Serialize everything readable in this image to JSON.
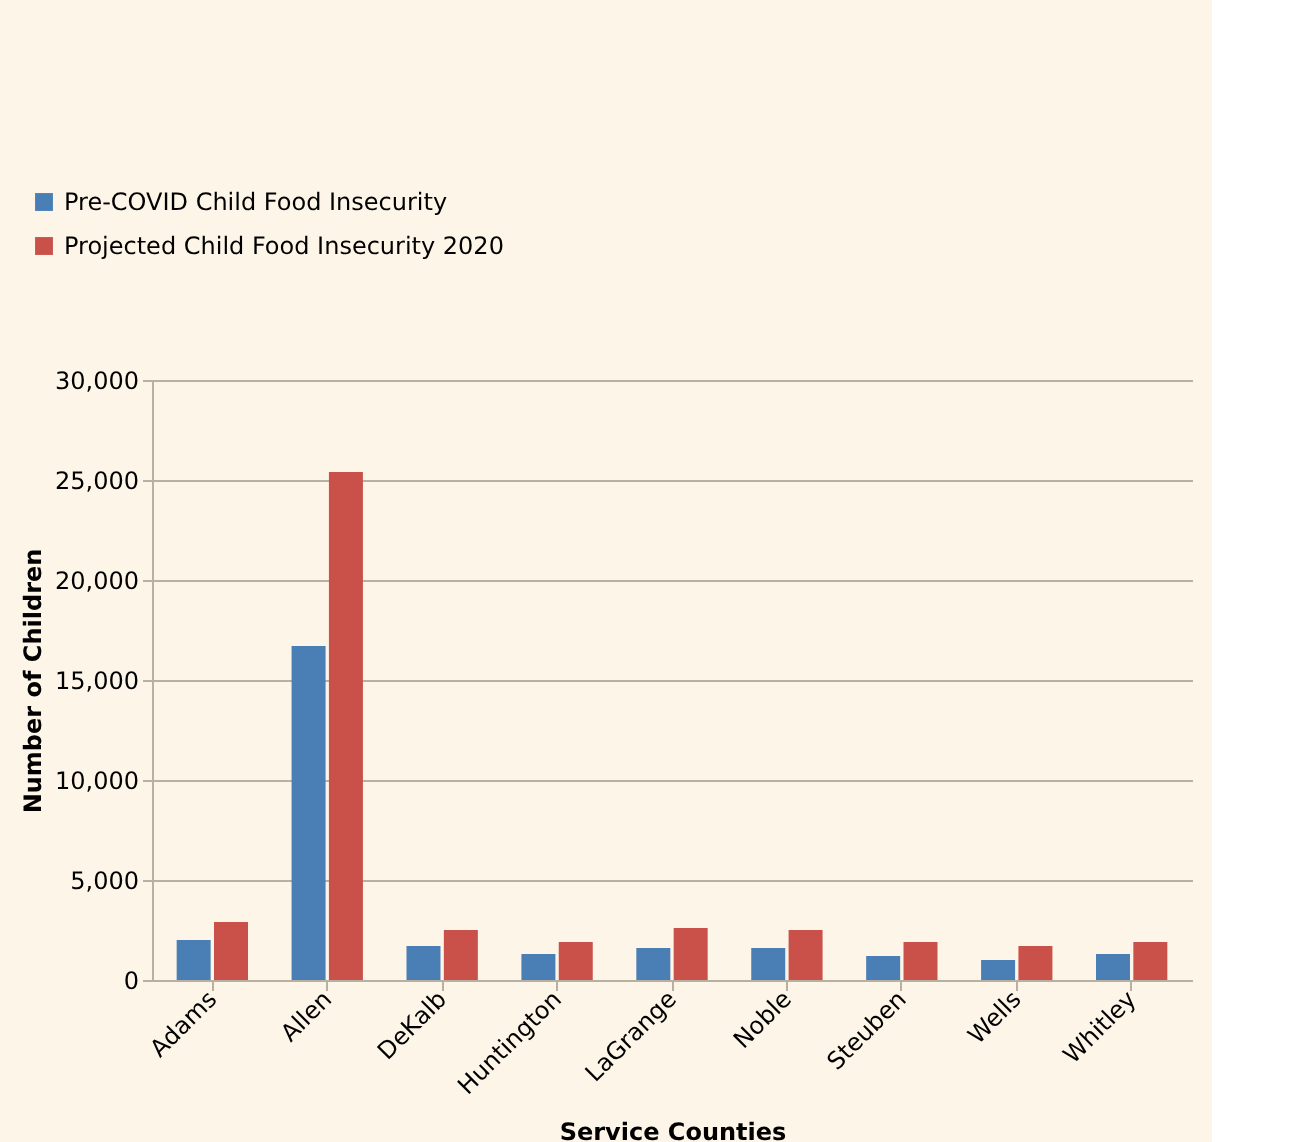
{
  "chart_data": {
    "type": "bar",
    "xlabel": "Service Counties",
    "ylabel": "Number of Children",
    "categories": [
      "Adams",
      "Allen",
      "DeKalb",
      "Huntington",
      "LaGrange",
      "Noble",
      "Steuben",
      "Wells",
      "Whitley"
    ],
    "series": [
      {
        "name": "Pre-COVID Child Food Insecurity",
        "color": "#4a7fb5",
        "values": [
          2000,
          16700,
          1700,
          1300,
          1600,
          1600,
          1200,
          1000,
          1300
        ]
      },
      {
        "name": "Projected Child Food Insecurity 2020",
        "color": "#c9514a",
        "values": [
          2900,
          25400,
          2500,
          1900,
          2600,
          2500,
          1900,
          1700,
          1900
        ]
      }
    ],
    "ylim": [
      0,
      30000
    ],
    "yticks": [
      {
        "value": 0,
        "label": "0"
      },
      {
        "value": 5000,
        "label": "5,000"
      },
      {
        "value": 10000,
        "label": "10,000"
      },
      {
        "value": 15000,
        "label": "15,000"
      },
      {
        "value": 20000,
        "label": "20,000"
      },
      {
        "value": 25000,
        "label": "25,000"
      },
      {
        "value": 30000,
        "label": "30,000"
      }
    ],
    "grid": "y",
    "legend": "top left"
  }
}
